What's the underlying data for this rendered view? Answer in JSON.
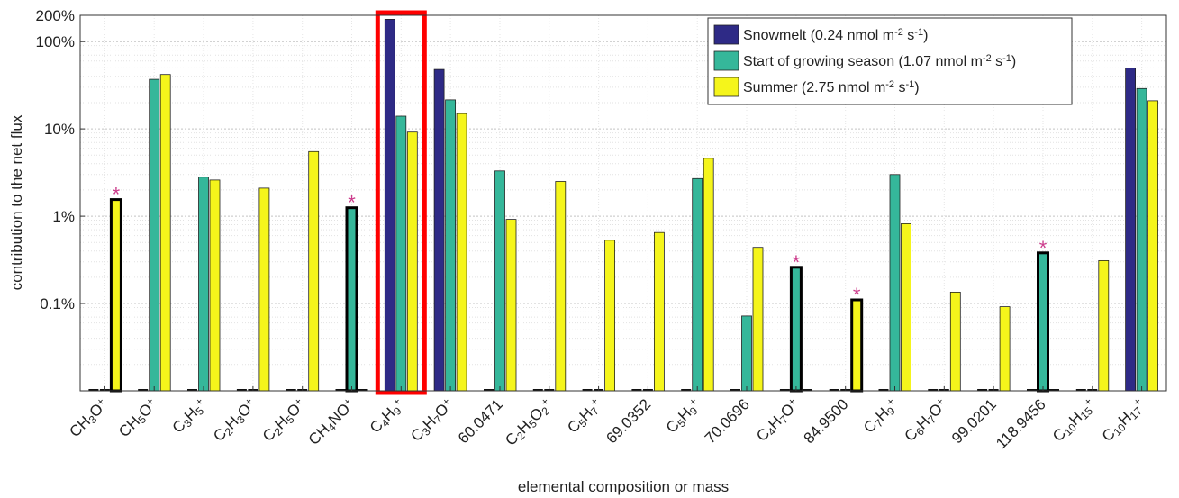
{
  "chart_data": {
    "type": "bar",
    "scale": "log",
    "ylim": [
      "0.01%",
      "200%"
    ],
    "ylabel": "contribution to the net flux",
    "xlabel": "elemental composition or mass",
    "yticks": [
      "0.1%",
      "1%",
      "10%",
      "100%",
      "200%"
    ],
    "grid": true,
    "legend_position": "top-right",
    "highlight_category_index": 6,
    "marker_symbol": "*",
    "categories": [
      "CH3O+",
      "CH5O+",
      "C3H5+",
      "C2H3O+",
      "C2H5O+",
      "CH4NO+",
      "C4H9+",
      "C3H7O+",
      "60.0471",
      "C2H5O2+",
      "C5H7+",
      "69.0352",
      "C5H9+",
      "70.0696",
      "C4H7O+",
      "84.9500",
      "C7H9+",
      "C6H7O+",
      "99.0201",
      "118.9456",
      "C10H15+",
      "C10H17+"
    ],
    "series": [
      {
        "name": "Snowmelt (0.24 nmol m-2 s-1)",
        "color": "#2e2a86",
        "values": [
          0,
          0,
          0,
          0,
          0,
          0,
          180,
          48,
          0,
          0,
          0,
          0,
          0,
          0,
          0,
          0,
          0,
          0,
          0,
          0,
          0,
          50
        ]
      },
      {
        "name": "Start of growing season (1.07 nmol m-2 s-1)",
        "color": "#35b79a",
        "values": [
          0,
          37,
          2.8,
          0,
          0,
          1.25,
          14,
          21.5,
          3.3,
          0,
          0,
          0,
          2.7,
          0.072,
          0.26,
          0,
          3,
          0,
          0,
          0.38,
          0,
          29
        ]
      },
      {
        "name": "Summer (2.75 nmol m-2 s-1)",
        "color": "#f5f51b",
        "values": [
          1.55,
          42,
          2.6,
          2.1,
          5.5,
          0,
          9.2,
          15,
          0.92,
          2.5,
          0.53,
          0.65,
          4.6,
          0.44,
          0,
          0.11,
          0.82,
          0.135,
          0.092,
          0,
          0.31,
          21
        ]
      }
    ],
    "marked_bars": [
      {
        "category_index": 0,
        "series_index": 2
      },
      {
        "category_index": 5,
        "series_index": 1
      },
      {
        "category_index": 14,
        "series_index": 1
      },
      {
        "category_index": 15,
        "series_index": 2
      },
      {
        "category_index": 19,
        "series_index": 1
      }
    ],
    "formulas": [
      [
        [
          "CH",
          ""
        ],
        [
          "3",
          "sub"
        ],
        [
          "O",
          ""
        ],
        [
          "+",
          "sup"
        ]
      ],
      [
        [
          "CH",
          ""
        ],
        [
          "5",
          "sub"
        ],
        [
          "O",
          ""
        ],
        [
          "+",
          "sup"
        ]
      ],
      [
        [
          "C",
          ""
        ],
        [
          "3",
          "sub"
        ],
        [
          "H",
          ""
        ],
        [
          "5",
          "sub"
        ],
        [
          "+",
          "sup"
        ]
      ],
      [
        [
          "C",
          ""
        ],
        [
          "2",
          "sub"
        ],
        [
          "H",
          ""
        ],
        [
          "3",
          "sub"
        ],
        [
          "O",
          ""
        ],
        [
          "+",
          "sup"
        ]
      ],
      [
        [
          "C",
          ""
        ],
        [
          "2",
          "sub"
        ],
        [
          "H",
          ""
        ],
        [
          "5",
          "sub"
        ],
        [
          "O",
          ""
        ],
        [
          "+",
          "sup"
        ]
      ],
      [
        [
          "CH",
          ""
        ],
        [
          "4",
          "sub"
        ],
        [
          "NO",
          ""
        ],
        [
          "+",
          "sup"
        ]
      ],
      [
        [
          "C",
          ""
        ],
        [
          "4",
          "sub"
        ],
        [
          "H",
          ""
        ],
        [
          "9",
          "sub"
        ],
        [
          "+",
          "sup"
        ]
      ],
      [
        [
          "C",
          ""
        ],
        [
          "3",
          "sub"
        ],
        [
          "H",
          ""
        ],
        [
          "7",
          "sub"
        ],
        [
          "O",
          ""
        ],
        [
          "+",
          "sup"
        ]
      ],
      [
        [
          "60.0471",
          ""
        ]
      ],
      [
        [
          "C",
          ""
        ],
        [
          "2",
          "sub"
        ],
        [
          "H",
          ""
        ],
        [
          "5",
          "sub"
        ],
        [
          "O",
          ""
        ],
        [
          "2",
          "sub"
        ],
        [
          "+",
          "sup"
        ]
      ],
      [
        [
          "C",
          ""
        ],
        [
          "5",
          "sub"
        ],
        [
          "H",
          ""
        ],
        [
          "7",
          "sub"
        ],
        [
          "+",
          "sup"
        ]
      ],
      [
        [
          "69.0352",
          ""
        ]
      ],
      [
        [
          "C",
          ""
        ],
        [
          "5",
          "sub"
        ],
        [
          "H",
          ""
        ],
        [
          "9",
          "sub"
        ],
        [
          "+",
          "sup"
        ]
      ],
      [
        [
          "70.0696",
          ""
        ]
      ],
      [
        [
          "C",
          ""
        ],
        [
          "4",
          "sub"
        ],
        [
          "H",
          ""
        ],
        [
          "7",
          "sub"
        ],
        [
          "O",
          ""
        ],
        [
          "+",
          "sup"
        ]
      ],
      [
        [
          "84.9500",
          ""
        ]
      ],
      [
        [
          "C",
          ""
        ],
        [
          "7",
          "sub"
        ],
        [
          "H",
          ""
        ],
        [
          "9",
          "sub"
        ],
        [
          "+",
          "sup"
        ]
      ],
      [
        [
          "C",
          ""
        ],
        [
          "6",
          "sub"
        ],
        [
          "H",
          ""
        ],
        [
          "7",
          "sub"
        ],
        [
          "O",
          ""
        ],
        [
          "+",
          "sup"
        ]
      ],
      [
        [
          "99.0201",
          ""
        ]
      ],
      [
        [
          "118.9456",
          ""
        ]
      ],
      [
        [
          "C",
          ""
        ],
        [
          "10",
          "sub"
        ],
        [
          "H",
          ""
        ],
        [
          "15",
          "sub"
        ],
        [
          "+",
          "sup"
        ]
      ],
      [
        [
          "C",
          ""
        ],
        [
          "10",
          "sub"
        ],
        [
          "H",
          ""
        ],
        [
          "17",
          "sub"
        ],
        [
          "+",
          "sup"
        ]
      ]
    ],
    "legend_entries": [
      [
        [
          "Snowmelt (0.24 nmol m",
          ""
        ],
        [
          "-2",
          "sup"
        ],
        [
          " s",
          ""
        ],
        [
          "-1",
          "sup"
        ],
        [
          ")",
          ""
        ]
      ],
      [
        [
          "Start of growing season (1.07 nmol m",
          ""
        ],
        [
          "-2",
          "sup"
        ],
        [
          " s",
          ""
        ],
        [
          "-1",
          "sup"
        ],
        [
          ")",
          ""
        ]
      ],
      [
        [
          "Summer (2.75 nmol m",
          ""
        ],
        [
          "-2",
          "sup"
        ],
        [
          " s",
          ""
        ],
        [
          "-1",
          "sup"
        ],
        [
          ")",
          ""
        ]
      ]
    ]
  }
}
